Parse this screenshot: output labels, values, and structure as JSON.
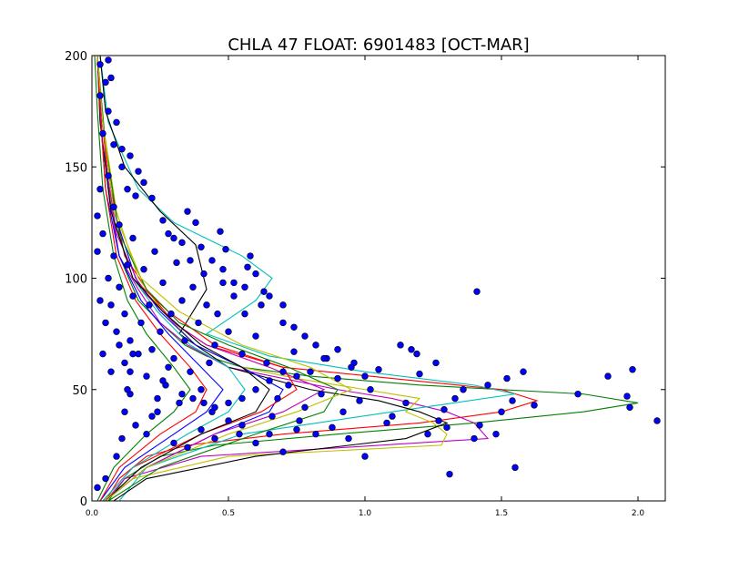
{
  "chart_data": {
    "type": "scatter",
    "title": "CHLA 47 FLOAT: 6901483 [OCT-MAR]",
    "xlabel": "",
    "ylabel": "",
    "xlim": [
      0.0,
      2.1
    ],
    "ylim": [
      0,
      200
    ],
    "x_ticks": [
      0.0,
      0.5,
      1.0,
      1.5,
      2.0
    ],
    "x_tick_labels": [
      "0.0",
      "0.5",
      "1.0",
      "1.5",
      "2.0"
    ],
    "y_ticks": [
      0,
      50,
      100,
      150,
      200
    ],
    "y_tick_labels": [
      "0",
      "50",
      "100",
      "150",
      "200"
    ],
    "grid": false,
    "legend": "none",
    "marker_color": "#0000ff",
    "line_colors": [
      "#0000ff",
      "#008000",
      "#ff0000",
      "#00bfbf",
      "#bf00bf",
      "#bfbf00",
      "#000000"
    ],
    "profiles": [
      {
        "color": "#008000",
        "depth": [
          0,
          10,
          20,
          25,
          30,
          35,
          40,
          44,
          48,
          52,
          56,
          60,
          65,
          70,
          80,
          90,
          110,
          140,
          170,
          200
        ],
        "chla": [
          0.06,
          0.12,
          0.25,
          0.45,
          0.9,
          1.4,
          1.8,
          2.0,
          1.8,
          1.2,
          0.8,
          0.55,
          0.42,
          0.34,
          0.25,
          0.17,
          0.1,
          0.06,
          0.04,
          0.02
        ]
      },
      {
        "color": "#ff0000",
        "depth": [
          0,
          10,
          20,
          25,
          30,
          35,
          40,
          45,
          50,
          55,
          60,
          70,
          80,
          95,
          110,
          140,
          170,
          200
        ],
        "chla": [
          0.05,
          0.1,
          0.2,
          0.35,
          0.7,
          1.2,
          1.5,
          1.63,
          1.5,
          1.1,
          0.7,
          0.42,
          0.3,
          0.2,
          0.12,
          0.07,
          0.04,
          0.02
        ]
      },
      {
        "color": "#bf00bf",
        "depth": [
          0,
          10,
          20,
          28,
          35,
          40,
          46,
          50,
          55,
          60,
          70,
          80,
          95,
          110,
          140,
          170,
          200
        ],
        "chla": [
          0.05,
          0.12,
          0.4,
          1.45,
          1.4,
          1.3,
          1.1,
          0.9,
          0.7,
          0.5,
          0.35,
          0.25,
          0.17,
          0.1,
          0.06,
          0.04,
          0.02
        ]
      },
      {
        "color": "#00bfbf",
        "depth": [
          0,
          15,
          30,
          40,
          48,
          52,
          58,
          65,
          75,
          90,
          100,
          110,
          125,
          140,
          170,
          200
        ],
        "chla": [
          0.1,
          0.2,
          0.55,
          1.1,
          1.55,
          1.4,
          1.0,
          0.65,
          0.42,
          0.6,
          0.66,
          0.55,
          0.3,
          0.17,
          0.06,
          0.03
        ]
      },
      {
        "color": "#bfbf00",
        "depth": [
          0,
          10,
          20,
          25,
          30,
          35,
          40,
          46,
          50,
          55,
          60,
          70,
          85,
          100,
          130,
          170,
          200
        ],
        "chla": [
          0.04,
          0.15,
          0.5,
          1.28,
          1.3,
          1.25,
          1.15,
          1.2,
          1.0,
          0.75,
          0.55,
          0.38,
          0.26,
          0.17,
          0.09,
          0.04,
          0.02
        ]
      },
      {
        "color": "#000000",
        "depth": [
          0,
          10,
          20,
          28,
          35,
          40,
          45,
          50,
          60,
          75,
          95,
          115,
          130,
          150,
          175,
          200
        ],
        "chla": [
          0.08,
          0.2,
          0.6,
          1.15,
          1.3,
          1.2,
          1.05,
          0.8,
          0.5,
          0.32,
          0.42,
          0.38,
          0.25,
          0.12,
          0.05,
          0.03
        ]
      },
      {
        "color": "#0000ff",
        "depth": [
          0,
          15,
          30,
          40,
          50,
          60,
          70,
          85,
          100,
          130,
          170,
          200
        ],
        "chla": [
          0.05,
          0.2,
          0.45,
          0.65,
          0.7,
          0.55,
          0.38,
          0.25,
          0.16,
          0.08,
          0.04,
          0.02
        ]
      },
      {
        "color": "#ff0000",
        "depth": [
          0,
          15,
          30,
          40,
          50,
          60,
          70,
          85,
          100,
          130,
          170,
          200
        ],
        "chla": [
          0.04,
          0.15,
          0.4,
          0.62,
          0.75,
          0.7,
          0.45,
          0.28,
          0.15,
          0.07,
          0.04,
          0.02
        ]
      },
      {
        "color": "#008000",
        "depth": [
          0,
          15,
          30,
          40,
          50,
          60,
          70,
          80,
          95,
          120,
          160,
          200
        ],
        "chla": [
          0.06,
          0.25,
          0.6,
          0.85,
          0.9,
          0.72,
          0.5,
          0.32,
          0.2,
          0.1,
          0.05,
          0.02
        ]
      },
      {
        "color": "#bf00bf",
        "depth": [
          0,
          15,
          30,
          40,
          50,
          60,
          70,
          80,
          95,
          120,
          160,
          200
        ],
        "chla": [
          0.05,
          0.2,
          0.45,
          0.7,
          0.85,
          0.65,
          0.42,
          0.3,
          0.18,
          0.09,
          0.04,
          0.02
        ]
      },
      {
        "color": "#00bfbf",
        "depth": [
          0,
          15,
          30,
          40,
          50,
          60,
          70,
          85,
          100,
          130,
          170,
          200
        ],
        "chla": [
          0.04,
          0.15,
          0.35,
          0.5,
          0.56,
          0.5,
          0.36,
          0.24,
          0.15,
          0.07,
          0.03,
          0.02
        ]
      },
      {
        "color": "#000000",
        "depth": [
          0,
          15,
          30,
          40,
          50,
          60,
          70,
          85,
          100,
          130,
          170,
          200
        ],
        "chla": [
          0.05,
          0.18,
          0.4,
          0.6,
          0.65,
          0.55,
          0.4,
          0.26,
          0.15,
          0.07,
          0.03,
          0.02
        ]
      },
      {
        "color": "#0000ff",
        "depth": [
          0,
          15,
          30,
          40,
          50,
          60,
          75,
          90,
          110,
          140,
          175,
          200
        ],
        "chla": [
          0.03,
          0.12,
          0.3,
          0.42,
          0.48,
          0.4,
          0.28,
          0.18,
          0.1,
          0.05,
          0.03,
          0.02
        ]
      },
      {
        "color": "#ff0000",
        "depth": [
          0,
          15,
          30,
          40,
          50,
          60,
          75,
          90,
          110,
          140,
          175,
          200
        ],
        "chla": [
          0.03,
          0.1,
          0.25,
          0.38,
          0.42,
          0.36,
          0.25,
          0.16,
          0.09,
          0.05,
          0.03,
          0.02
        ]
      },
      {
        "color": "#bfbf00",
        "depth": [
          0,
          15,
          30,
          40,
          50,
          60,
          70,
          85,
          100,
          130,
          170,
          200
        ],
        "chla": [
          0.05,
          0.2,
          0.5,
          0.75,
          0.95,
          0.8,
          0.55,
          0.32,
          0.18,
          0.08,
          0.04,
          0.02
        ]
      },
      {
        "color": "#008000",
        "depth": [
          0,
          15,
          30,
          40,
          50,
          60,
          75,
          90,
          110,
          140,
          175,
          200
        ],
        "chla": [
          0.02,
          0.08,
          0.2,
          0.3,
          0.36,
          0.3,
          0.2,
          0.13,
          0.08,
          0.04,
          0.02,
          0.01
        ]
      }
    ],
    "points": [
      [
        2.07,
        36
      ],
      [
        1.98,
        59
      ],
      [
        1.96,
        47
      ],
      [
        1.97,
        42
      ],
      [
        1.89,
        56
      ],
      [
        1.78,
        48
      ],
      [
        1.62,
        43
      ],
      [
        1.58,
        58
      ],
      [
        1.55,
        15
      ],
      [
        1.54,
        45
      ],
      [
        1.52,
        55
      ],
      [
        1.5,
        40
      ],
      [
        1.48,
        30
      ],
      [
        1.45,
        52
      ],
      [
        1.42,
        34
      ],
      [
        1.4,
        28
      ],
      [
        1.41,
        94
      ],
      [
        1.36,
        50
      ],
      [
        1.33,
        46
      ],
      [
        1.31,
        12
      ],
      [
        1.3,
        33
      ],
      [
        1.29,
        41
      ],
      [
        1.27,
        36
      ],
      [
        1.26,
        62
      ],
      [
        1.23,
        30
      ],
      [
        1.2,
        57
      ],
      [
        1.19,
        66
      ],
      [
        1.17,
        68
      ],
      [
        1.15,
        44
      ],
      [
        1.13,
        70
      ],
      [
        1.1,
        38
      ],
      [
        1.08,
        35
      ],
      [
        1.05,
        59
      ],
      [
        1.02,
        50
      ],
      [
        1.0,
        20
      ],
      [
        0.98,
        45
      ],
      [
        0.96,
        62
      ],
      [
        0.94,
        28
      ],
      [
        0.92,
        40
      ],
      [
        0.9,
        55
      ],
      [
        0.88,
        33
      ],
      [
        0.86,
        64
      ],
      [
        0.84,
        48
      ],
      [
        0.82,
        30
      ],
      [
        0.8,
        58
      ],
      [
        0.78,
        42
      ],
      [
        0.76,
        36
      ],
      [
        0.74,
        67
      ],
      [
        0.72,
        52
      ],
      [
        0.7,
        80
      ],
      [
        0.68,
        46
      ],
      [
        0.66,
        38
      ],
      [
        0.64,
        62
      ],
      [
        0.63,
        94
      ],
      [
        0.62,
        88
      ],
      [
        0.6,
        74
      ],
      [
        0.58,
        110
      ],
      [
        0.57,
        105
      ],
      [
        0.56,
        84
      ],
      [
        0.55,
        66
      ],
      [
        0.54,
        30
      ],
      [
        0.52,
        92
      ],
      [
        0.5,
        76
      ],
      [
        0.49,
        113
      ],
      [
        0.48,
        98
      ],
      [
        0.47,
        121
      ],
      [
        0.46,
        84
      ],
      [
        0.45,
        70
      ],
      [
        0.44,
        40
      ],
      [
        0.43,
        62
      ],
      [
        0.42,
        88
      ],
      [
        0.41,
        102
      ],
      [
        0.4,
        50
      ],
      [
        0.39,
        80
      ],
      [
        0.38,
        125
      ],
      [
        0.37,
        96
      ],
      [
        0.36,
        58
      ],
      [
        0.35,
        130
      ],
      [
        0.34,
        72
      ],
      [
        0.33,
        90
      ],
      [
        0.32,
        44
      ],
      [
        0.31,
        107
      ],
      [
        0.3,
        64
      ],
      [
        0.29,
        84
      ],
      [
        0.28,
        120
      ],
      [
        0.27,
        52
      ],
      [
        0.26,
        98
      ],
      [
        0.25,
        76
      ],
      [
        0.24,
        40
      ],
      [
        0.23,
        112
      ],
      [
        0.22,
        68
      ],
      [
        0.21,
        88
      ],
      [
        0.2,
        56
      ],
      [
        0.19,
        104
      ],
      [
        0.18,
        80
      ],
      [
        0.17,
        66
      ],
      [
        0.16,
        137
      ],
      [
        0.16,
        34
      ],
      [
        0.15,
        118
      ],
      [
        0.15,
        92
      ],
      [
        0.14,
        72
      ],
      [
        0.14,
        48
      ],
      [
        0.13,
        140
      ],
      [
        0.13,
        106
      ],
      [
        0.12,
        84
      ],
      [
        0.12,
        62
      ],
      [
        0.11,
        28
      ],
      [
        0.11,
        150
      ],
      [
        0.1,
        124
      ],
      [
        0.1,
        96
      ],
      [
        0.09,
        76
      ],
      [
        0.09,
        20
      ],
      [
        0.08,
        160
      ],
      [
        0.08,
        132
      ],
      [
        0.08,
        110
      ],
      [
        0.07,
        88
      ],
      [
        0.07,
        58
      ],
      [
        0.06,
        175
      ],
      [
        0.06,
        146
      ],
      [
        0.06,
        100
      ],
      [
        0.05,
        80
      ],
      [
        0.05,
        10
      ],
      [
        0.05,
        188
      ],
      [
        0.04,
        165
      ],
      [
        0.04,
        120
      ],
      [
        0.04,
        66
      ],
      [
        0.03,
        196
      ],
      [
        0.03,
        182
      ],
      [
        0.03,
        140
      ],
      [
        0.03,
        90
      ],
      [
        0.02,
        128
      ],
      [
        0.02,
        112
      ],
      [
        0.02,
        6
      ],
      [
        0.06,
        198
      ],
      [
        0.07,
        190
      ],
      [
        0.09,
        170
      ],
      [
        0.11,
        158
      ],
      [
        0.14,
        155
      ],
      [
        0.17,
        148
      ],
      [
        0.19,
        143
      ],
      [
        0.22,
        136
      ],
      [
        0.26,
        126
      ],
      [
        0.3,
        118
      ],
      [
        0.33,
        116
      ],
      [
        0.36,
        108
      ],
      [
        0.4,
        114
      ],
      [
        0.44,
        108
      ],
      [
        0.48,
        104
      ],
      [
        0.52,
        98
      ],
      [
        0.56,
        96
      ],
      [
        0.6,
        102
      ],
      [
        0.65,
        92
      ],
      [
        0.7,
        88
      ],
      [
        0.74,
        78
      ],
      [
        0.78,
        74
      ],
      [
        0.82,
        70
      ],
      [
        0.85,
        64
      ],
      [
        0.9,
        68
      ],
      [
        0.95,
        60
      ],
      [
        1.0,
        56
      ],
      [
        0.33,
        48
      ],
      [
        0.37,
        46
      ],
      [
        0.41,
        44
      ],
      [
        0.45,
        42
      ],
      [
        0.5,
        44
      ],
      [
        0.55,
        46
      ],
      [
        0.6,
        50
      ],
      [
        0.65,
        54
      ],
      [
        0.7,
        58
      ],
      [
        0.75,
        56
      ],
      [
        0.3,
        26
      ],
      [
        0.35,
        24
      ],
      [
        0.4,
        32
      ],
      [
        0.45,
        28
      ],
      [
        0.5,
        36
      ],
      [
        0.55,
        34
      ],
      [
        0.6,
        26
      ],
      [
        0.65,
        30
      ],
      [
        0.7,
        22
      ],
      [
        0.75,
        32
      ],
      [
        0.2,
        30
      ],
      [
        0.22,
        38
      ],
      [
        0.24,
        46
      ],
      [
        0.26,
        54
      ],
      [
        0.28,
        60
      ],
      [
        0.12,
        40
      ],
      [
        0.13,
        50
      ],
      [
        0.14,
        58
      ],
      [
        0.15,
        66
      ],
      [
        0.1,
        70
      ]
    ]
  }
}
